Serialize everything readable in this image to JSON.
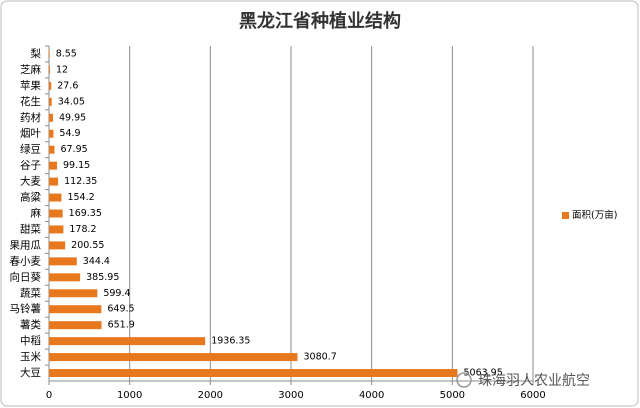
{
  "chart_data": {
    "type": "bar",
    "orientation": "horizontal",
    "title": "黑龙江省种植业结构",
    "categories": [
      "梨",
      "芝麻",
      "苹果",
      "花生",
      "药材",
      "烟叶",
      "绿豆",
      "谷子",
      "大麦",
      "高粱",
      "麻",
      "甜菜",
      "果用瓜",
      "春小麦",
      "向日葵",
      "蔬菜",
      "马铃薯",
      "薯类",
      "中稻",
      "玉米",
      "大豆"
    ],
    "series": [
      {
        "name": "面积(万亩)",
        "color": "#e8781e",
        "values": [
          8.55,
          12,
          27.6,
          34.05,
          49.95,
          54.9,
          67.95,
          99.15,
          112.35,
          154.2,
          169.35,
          178.2,
          200.55,
          344.4,
          385.95,
          599.4,
          649.5,
          651.9,
          1936.35,
          3080.7,
          5063.95
        ]
      }
    ],
    "xlim": [
      0,
      6000
    ],
    "xticks": [
      0,
      1000,
      2000,
      3000,
      4000,
      5000,
      6000
    ],
    "grid": true,
    "legend": "right",
    "watermark": "珠海羽人农业航空"
  }
}
